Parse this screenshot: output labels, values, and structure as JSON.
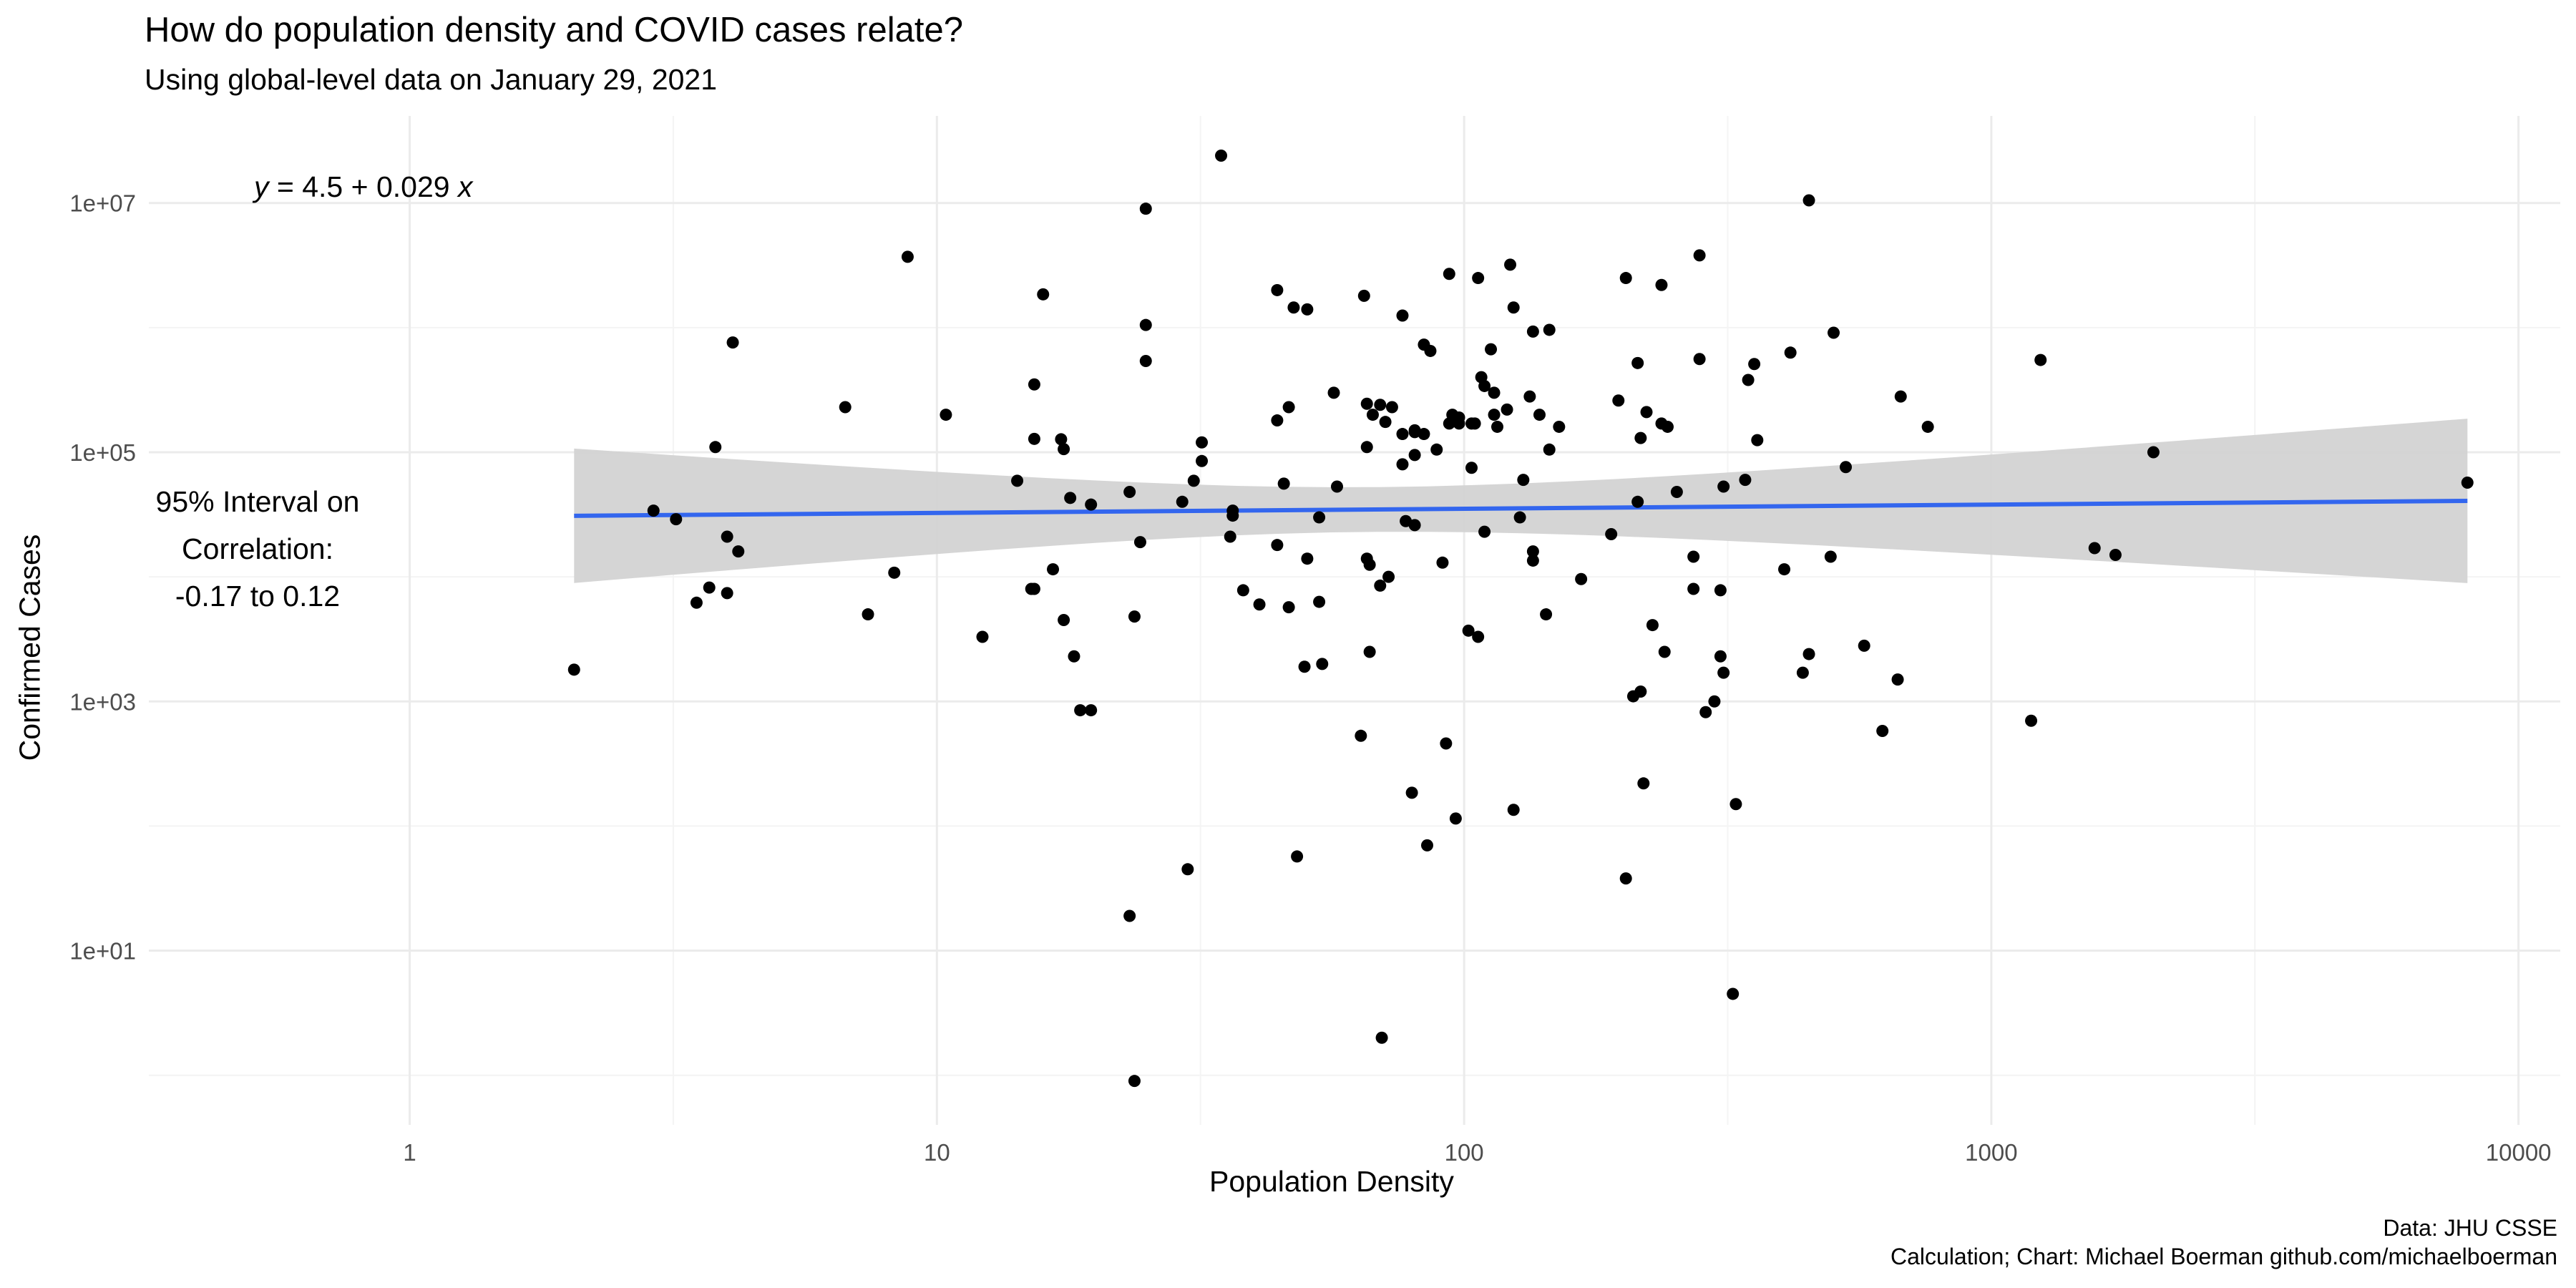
{
  "chart_data": {
    "type": "scatter",
    "title": "How do population density and COVID cases relate?",
    "subtitle": "Using global-level data on January 29, 2021",
    "xlabel": "Population Density",
    "ylabel": "Confirmed Cases",
    "x_scale": "log10",
    "y_scale": "log10",
    "xlim": [
      0.32,
      12000
    ],
    "ylim": [
      0.4,
      50000000
    ],
    "x_ticks": [
      1,
      10,
      100,
      1000,
      10000
    ],
    "x_tick_labels": [
      "1",
      "10",
      "100",
      "1000",
      "10000"
    ],
    "y_ticks": [
      10,
      1000,
      100000,
      10000000
    ],
    "y_tick_labels": [
      "1e+01",
      "1e+03",
      "1e+05",
      "1e+07"
    ],
    "grid": true,
    "point_color": "#000000",
    "fit_color": "#3366ee",
    "band_color": "#d3d3d3",
    "annotations": {
      "equation_prefix": "y",
      "equation_body": " = 4.5 + 0.029 ",
      "equation_suffix": "x",
      "ci_line1": "95% Interval on",
      "ci_line2": "Correlation:",
      "ci_line3": "-0.17 to 0.12"
    },
    "caption_line1": "Data: JHU CSSE",
    "caption_line2": "Calculation; Chart: Michael Boerman github.com/michaelboerman",
    "fit": {
      "x": [
        2.05,
        8000
      ],
      "y": [
        30900,
        40700
      ],
      "band_lower": [
        8600,
        8600
      ],
      "band_upper": [
        107000,
        186000
      ],
      "band_min_x": 66,
      "band_min_lower": 21000,
      "band_min_upper": 48000
    },
    "points": [
      {
        "x": 2.05,
        "y": 1800
      },
      {
        "x": 2.9,
        "y": 34000
      },
      {
        "x": 3.2,
        "y": 29000
      },
      {
        "x": 3.5,
        "y": 6200
      },
      {
        "x": 3.7,
        "y": 8200
      },
      {
        "x": 3.8,
        "y": 110000
      },
      {
        "x": 4.0,
        "y": 21000
      },
      {
        "x": 4.0,
        "y": 7400
      },
      {
        "x": 4.1,
        "y": 760000
      },
      {
        "x": 4.2,
        "y": 16000
      },
      {
        "x": 6.7,
        "y": 230000
      },
      {
        "x": 7.4,
        "y": 5000
      },
      {
        "x": 8.3,
        "y": 10800
      },
      {
        "x": 8.8,
        "y": 3700000
      },
      {
        "x": 10.4,
        "y": 200000
      },
      {
        "x": 12.2,
        "y": 3300
      },
      {
        "x": 14.2,
        "y": 59000
      },
      {
        "x": 15.1,
        "y": 8000
      },
      {
        "x": 15.3,
        "y": 8000
      },
      {
        "x": 15.3,
        "y": 350000
      },
      {
        "x": 15.3,
        "y": 128000
      },
      {
        "x": 15.9,
        "y": 1850000
      },
      {
        "x": 16.6,
        "y": 11500
      },
      {
        "x": 17.2,
        "y": 127000
      },
      {
        "x": 17.4,
        "y": 106000
      },
      {
        "x": 17.4,
        "y": 4500
      },
      {
        "x": 17.9,
        "y": 43000
      },
      {
        "x": 18.2,
        "y": 2300
      },
      {
        "x": 18.7,
        "y": 850
      },
      {
        "x": 19.6,
        "y": 850
      },
      {
        "x": 19.6,
        "y": 38000
      },
      {
        "x": 23.2,
        "y": 48000
      },
      {
        "x": 23.2,
        "y": 19
      },
      {
        "x": 23.7,
        "y": 4800
      },
      {
        "x": 23.7,
        "y": 0.9
      },
      {
        "x": 24.3,
        "y": 19000
      },
      {
        "x": 24.9,
        "y": 9000000
      },
      {
        "x": 24.9,
        "y": 1050000
      },
      {
        "x": 24.9,
        "y": 540000
      },
      {
        "x": 29.2,
        "y": 40000
      },
      {
        "x": 29.9,
        "y": 45
      },
      {
        "x": 30.7,
        "y": 59000
      },
      {
        "x": 31.8,
        "y": 85000
      },
      {
        "x": 31.8,
        "y": 120000
      },
      {
        "x": 34.6,
        "y": 24000000
      },
      {
        "x": 36.0,
        "y": 21000
      },
      {
        "x": 36.4,
        "y": 34000
      },
      {
        "x": 36.4,
        "y": 31000
      },
      {
        "x": 38.1,
        "y": 7800
      },
      {
        "x": 40.9,
        "y": 6000
      },
      {
        "x": 44.2,
        "y": 2000000
      },
      {
        "x": 44.2,
        "y": 180000
      },
      {
        "x": 44.2,
        "y": 18000
      },
      {
        "x": 45.5,
        "y": 56000
      },
      {
        "x": 46.5,
        "y": 5700
      },
      {
        "x": 46.5,
        "y": 230000
      },
      {
        "x": 47.5,
        "y": 1450000
      },
      {
        "x": 48.2,
        "y": 57
      },
      {
        "x": 49.8,
        "y": 1900
      },
      {
        "x": 50.4,
        "y": 1400000
      },
      {
        "x": 50.4,
        "y": 14000
      },
      {
        "x": 53.1,
        "y": 6300
      },
      {
        "x": 53.1,
        "y": 30000
      },
      {
        "x": 53.8,
        "y": 2000
      },
      {
        "x": 56.6,
        "y": 300000
      },
      {
        "x": 57.4,
        "y": 53000
      },
      {
        "x": 63.7,
        "y": 530
      },
      {
        "x": 64.6,
        "y": 1800000
      },
      {
        "x": 65.4,
        "y": 245000
      },
      {
        "x": 65.4,
        "y": 110000
      },
      {
        "x": 65.4,
        "y": 14000
      },
      {
        "x": 66.2,
        "y": 12500
      },
      {
        "x": 66.2,
        "y": 2500
      },
      {
        "x": 67.1,
        "y": 200000
      },
      {
        "x": 69.3,
        "y": 240000
      },
      {
        "x": 69.3,
        "y": 8500
      },
      {
        "x": 69.8,
        "y": 2
      },
      {
        "x": 70.9,
        "y": 175000
      },
      {
        "x": 71.9,
        "y": 10000
      },
      {
        "x": 73.0,
        "y": 230000
      },
      {
        "x": 76.4,
        "y": 1250000
      },
      {
        "x": 76.4,
        "y": 140000
      },
      {
        "x": 76.4,
        "y": 80000
      },
      {
        "x": 77.5,
        "y": 28000
      },
      {
        "x": 79.6,
        "y": 185
      },
      {
        "x": 80.6,
        "y": 26000
      },
      {
        "x": 80.6,
        "y": 145000
      },
      {
        "x": 80.6,
        "y": 95000
      },
      {
        "x": 80.6,
        "y": 150000
      },
      {
        "x": 83.9,
        "y": 730000
      },
      {
        "x": 83.9,
        "y": 140000
      },
      {
        "x": 85.1,
        "y": 70
      },
      {
        "x": 86.3,
        "y": 650000
      },
      {
        "x": 88.7,
        "y": 105000
      },
      {
        "x": 91.0,
        "y": 13000
      },
      {
        "x": 92.4,
        "y": 460
      },
      {
        "x": 93.7,
        "y": 2700000
      },
      {
        "x": 93.7,
        "y": 170000
      },
      {
        "x": 95.0,
        "y": 200000
      },
      {
        "x": 96.4,
        "y": 115
      },
      {
        "x": 97.8,
        "y": 170000
      },
      {
        "x": 97.8,
        "y": 190000
      },
      {
        "x": 101.9,
        "y": 3700
      },
      {
        "x": 103.3,
        "y": 170000
      },
      {
        "x": 103.3,
        "y": 75000
      },
      {
        "x": 104.8,
        "y": 170000
      },
      {
        "x": 106.3,
        "y": 3300
      },
      {
        "x": 106.3,
        "y": 2500000
      },
      {
        "x": 107.8,
        "y": 400000
      },
      {
        "x": 109.3,
        "y": 23000
      },
      {
        "x": 109.3,
        "y": 340000
      },
      {
        "x": 112.4,
        "y": 670000
      },
      {
        "x": 114.0,
        "y": 300000
      },
      {
        "x": 114.0,
        "y": 200000
      },
      {
        "x": 115.6,
        "y": 160000
      },
      {
        "x": 120.6,
        "y": 220000
      },
      {
        "x": 122.3,
        "y": 3200000
      },
      {
        "x": 124.1,
        "y": 1450000
      },
      {
        "x": 124.1,
        "y": 135
      },
      {
        "x": 127.6,
        "y": 30000
      },
      {
        "x": 129.5,
        "y": 60000
      },
      {
        "x": 133.2,
        "y": 280000
      },
      {
        "x": 135.1,
        "y": 16000
      },
      {
        "x": 135.1,
        "y": 13500
      },
      {
        "x": 135.1,
        "y": 930000
      },
      {
        "x": 139.0,
        "y": 200000
      },
      {
        "x": 143.0,
        "y": 5000
      },
      {
        "x": 145.1,
        "y": 960000
      },
      {
        "x": 145.1,
        "y": 105000
      },
      {
        "x": 151.4,
        "y": 160000
      },
      {
        "x": 166.7,
        "y": 9600
      },
      {
        "x": 190.1,
        "y": 22000
      },
      {
        "x": 196.2,
        "y": 260000
      },
      {
        "x": 202.7,
        "y": 38
      },
      {
        "x": 202.7,
        "y": 2500000
      },
      {
        "x": 209.3,
        "y": 1100
      },
      {
        "x": 213.4,
        "y": 40000
      },
      {
        "x": 213.4,
        "y": 520000
      },
      {
        "x": 216.2,
        "y": 130000
      },
      {
        "x": 216.2,
        "y": 1200
      },
      {
        "x": 218.9,
        "y": 220
      },
      {
        "x": 221.8,
        "y": 210000
      },
      {
        "x": 227.7,
        "y": 4100
      },
      {
        "x": 236.8,
        "y": 2200000
      },
      {
        "x": 236.8,
        "y": 170000
      },
      {
        "x": 240.0,
        "y": 2500
      },
      {
        "x": 243.2,
        "y": 160000
      },
      {
        "x": 253.2,
        "y": 48000
      },
      {
        "x": 272.3,
        "y": 14500
      },
      {
        "x": 272.3,
        "y": 8000
      },
      {
        "x": 279.6,
        "y": 3800000
      },
      {
        "x": 279.6,
        "y": 560000
      },
      {
        "x": 287.2,
        "y": 820
      },
      {
        "x": 298.4,
        "y": 1000
      },
      {
        "x": 306.4,
        "y": 2300
      },
      {
        "x": 306.4,
        "y": 7800
      },
      {
        "x": 310.5,
        "y": 1700
      },
      {
        "x": 310.5,
        "y": 53000
      },
      {
        "x": 323.4,
        "y": 4.5
      },
      {
        "x": 327.7,
        "y": 150
      },
      {
        "x": 341.3,
        "y": 60000
      },
      {
        "x": 345.8,
        "y": 380000
      },
      {
        "x": 355.1,
        "y": 510000
      },
      {
        "x": 359.8,
        "y": 125000
      },
      {
        "x": 404.8,
        "y": 11500
      },
      {
        "x": 415.9,
        "y": 630000
      },
      {
        "x": 438.9,
        "y": 1700
      },
      {
        "x": 450.9,
        "y": 2400
      },
      {
        "x": 450.9,
        "y": 10500000
      },
      {
        "x": 495.7,
        "y": 14500
      },
      {
        "x": 502.2,
        "y": 910000
      },
      {
        "x": 529.6,
        "y": 76000
      },
      {
        "x": 573.9,
        "y": 2800
      },
      {
        "x": 621.5,
        "y": 580
      },
      {
        "x": 664.4,
        "y": 1500
      },
      {
        "x": 673.2,
        "y": 280000
      },
      {
        "x": 757.8,
        "y": 160000
      },
      {
        "x": 1190,
        "y": 700
      },
      {
        "x": 1240,
        "y": 550000
      },
      {
        "x": 1570,
        "y": 17000
      },
      {
        "x": 1720,
        "y": 15000
      },
      {
        "x": 2030,
        "y": 100000
      },
      {
        "x": 8000,
        "y": 57000
      }
    ]
  }
}
